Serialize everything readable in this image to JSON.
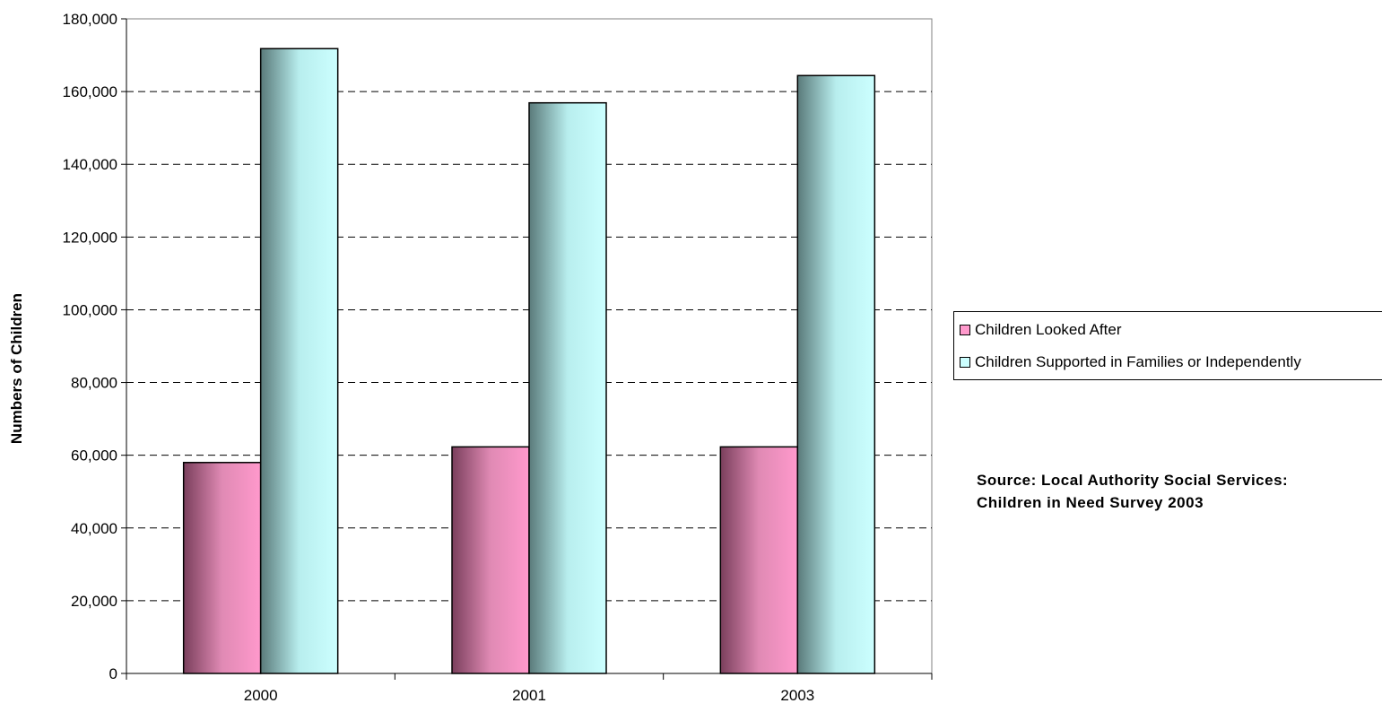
{
  "chart_data": {
    "type": "bar",
    "title": "",
    "xlabel": "",
    "ylabel": "Numbers of Children",
    "categories": [
      "2000",
      "2001",
      "2003"
    ],
    "ylim": [
      0,
      180000
    ],
    "y_ticks": [
      0,
      20000,
      40000,
      60000,
      80000,
      100000,
      120000,
      140000,
      160000,
      180000
    ],
    "y_tick_labels": [
      "0",
      "20,000",
      "40,000",
      "60,000",
      "80,000",
      "100,000",
      "120,000",
      "140,000",
      "160,000",
      "180,000"
    ],
    "grid": "horizontal dashed",
    "legend_position": "right",
    "series": [
      {
        "name": "Children Looked After",
        "values": [
          58000,
          62300,
          62300
        ],
        "color": "#ff99cc"
      },
      {
        "name": "Children Supported in Families or Independently",
        "values": [
          171800,
          156900,
          164400
        ],
        "color": "#ccffff"
      }
    ],
    "annotation": {
      "line1": "Source: Local Authority Social Services:",
      "line2": "Children in Need Survey 2003"
    }
  }
}
